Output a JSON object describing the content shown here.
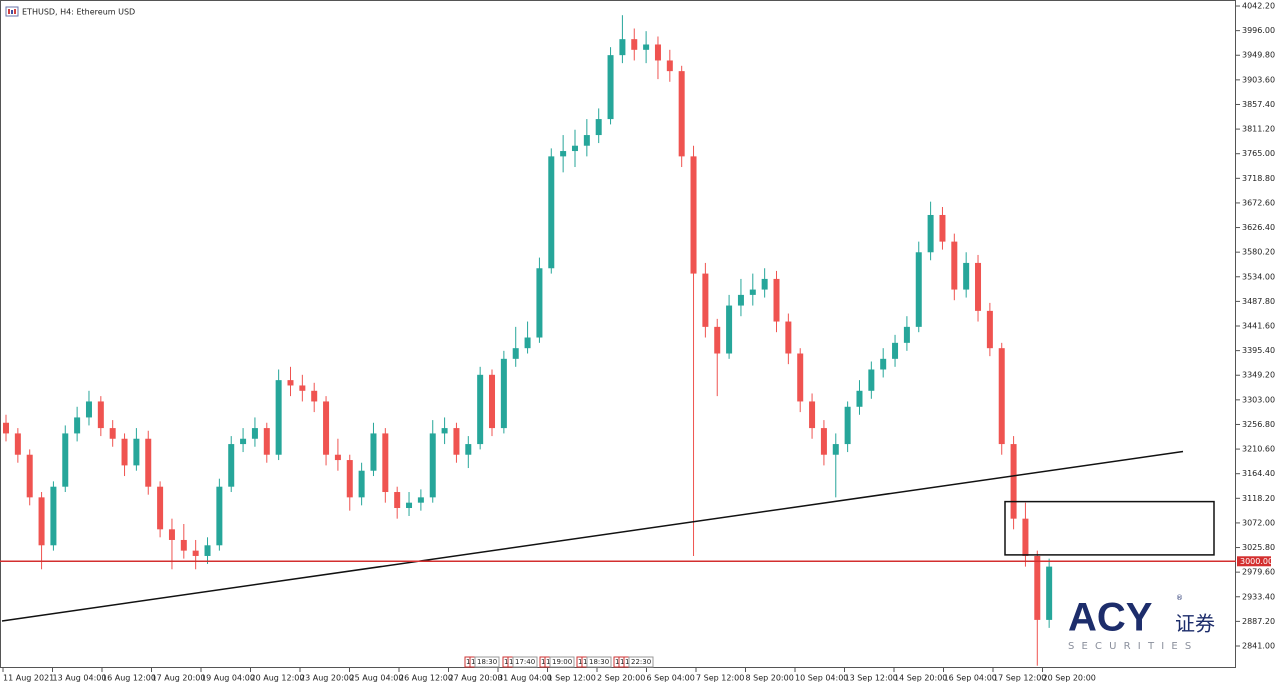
{
  "chart_data": {
    "type": "candlestick",
    "title": "ETHUSD, H4:  Ethereum USD",
    "up_color": "#26a69a",
    "down_color": "#ef5350",
    "x_labels": [
      "11 Aug 2021",
      "13 Aug 04:00",
      "16 Aug 12:00",
      "17 Aug 20:00",
      "19 Aug 04:00",
      "20 Aug 12:00",
      "23 Aug 20:00",
      "25 Aug 04:00",
      "26 Aug 12:00",
      "27 Aug 20:00",
      "31 Aug 04:00",
      "1 Sep 12:00",
      "2 Sep 20:00",
      "6 Sep 04:00",
      "7 Sep 12:00",
      "8 Sep 20:00",
      "10 Sep 04:00",
      "13 Sep 12:00",
      "14 Sep 20:00",
      "16 Sep 04:00",
      "17 Sep 12:00",
      "20 Sep 20:00"
    ],
    "ohlc": [
      [
        3260,
        3275,
        3225,
        3240
      ],
      [
        3240,
        3250,
        3185,
        3200
      ],
      [
        3200,
        3210,
        3105,
        3120
      ],
      [
        3120,
        3130,
        2985,
        3030
      ],
      [
        3030,
        3150,
        3020,
        3140
      ],
      [
        3140,
        3255,
        3130,
        3240
      ],
      [
        3240,
        3290,
        3225,
        3270
      ],
      [
        3270,
        3320,
        3255,
        3300
      ],
      [
        3300,
        3310,
        3235,
        3250
      ],
      [
        3250,
        3265,
        3215,
        3230
      ],
      [
        3230,
        3240,
        3160,
        3180
      ],
      [
        3180,
        3250,
        3170,
        3230
      ],
      [
        3230,
        3245,
        3125,
        3140
      ],
      [
        3140,
        3150,
        3045,
        3060
      ],
      [
        3060,
        3080,
        2985,
        3040
      ],
      [
        3040,
        3070,
        3005,
        3020
      ],
      [
        3020,
        3040,
        2985,
        3010
      ],
      [
        3010,
        3045,
        2995,
        3030
      ],
      [
        3030,
        3155,
        3020,
        3140
      ],
      [
        3140,
        3235,
        3130,
        3220
      ],
      [
        3220,
        3250,
        3205,
        3230
      ],
      [
        3230,
        3270,
        3215,
        3250
      ],
      [
        3250,
        3260,
        3185,
        3200
      ],
      [
        3200,
        3360,
        3190,
        3340
      ],
      [
        3340,
        3365,
        3310,
        3330
      ],
      [
        3330,
        3350,
        3300,
        3320
      ],
      [
        3320,
        3335,
        3280,
        3300
      ],
      [
        3300,
        3310,
        3180,
        3200
      ],
      [
        3200,
        3230,
        3170,
        3190
      ],
      [
        3190,
        3200,
        3095,
        3120
      ],
      [
        3120,
        3185,
        3105,
        3170
      ],
      [
        3170,
        3260,
        3160,
        3240
      ],
      [
        3240,
        3250,
        3110,
        3130
      ],
      [
        3130,
        3140,
        3080,
        3100
      ],
      [
        3100,
        3130,
        3085,
        3110
      ],
      [
        3110,
        3135,
        3095,
        3120
      ],
      [
        3120,
        3265,
        3110,
        3240
      ],
      [
        3240,
        3270,
        3220,
        3250
      ],
      [
        3250,
        3260,
        3185,
        3200
      ],
      [
        3200,
        3235,
        3175,
        3220
      ],
      [
        3220,
        3365,
        3210,
        3350
      ],
      [
        3350,
        3360,
        3235,
        3250
      ],
      [
        3250,
        3395,
        3240,
        3380
      ],
      [
        3380,
        3440,
        3365,
        3400
      ],
      [
        3400,
        3450,
        3390,
        3420
      ],
      [
        3420,
        3570,
        3410,
        3550
      ],
      [
        3550,
        3775,
        3540,
        3760
      ],
      [
        3760,
        3800,
        3730,
        3770
      ],
      [
        3770,
        3810,
        3740,
        3780
      ],
      [
        3780,
        3830,
        3760,
        3800
      ],
      [
        3800,
        3850,
        3785,
        3830
      ],
      [
        3830,
        3965,
        3820,
        3950
      ],
      [
        3950,
        4025,
        3935,
        3980
      ],
      [
        3980,
        4000,
        3940,
        3960
      ],
      [
        3960,
        3995,
        3935,
        3970
      ],
      [
        3970,
        3985,
        3905,
        3940
      ],
      [
        3940,
        3960,
        3900,
        3920
      ],
      [
        3920,
        3930,
        3740,
        3760
      ],
      [
        3760,
        3780,
        3010,
        3540
      ],
      [
        3540,
        3560,
        3420,
        3440
      ],
      [
        3440,
        3455,
        3310,
        3390
      ],
      [
        3390,
        3500,
        3380,
        3480
      ],
      [
        3480,
        3530,
        3460,
        3500
      ],
      [
        3500,
        3540,
        3480,
        3510
      ],
      [
        3510,
        3550,
        3495,
        3530
      ],
      [
        3530,
        3545,
        3430,
        3450
      ],
      [
        3450,
        3465,
        3370,
        3390
      ],
      [
        3390,
        3400,
        3280,
        3300
      ],
      [
        3300,
        3315,
        3230,
        3250
      ],
      [
        3250,
        3265,
        3180,
        3200
      ],
      [
        3200,
        3240,
        3120,
        3220
      ],
      [
        3220,
        3300,
        3205,
        3290
      ],
      [
        3290,
        3340,
        3275,
        3320
      ],
      [
        3320,
        3375,
        3305,
        3360
      ],
      [
        3360,
        3400,
        3345,
        3380
      ],
      [
        3380,
        3425,
        3365,
        3410
      ],
      [
        3410,
        3460,
        3395,
        3440
      ],
      [
        3440,
        3600,
        3430,
        3580
      ],
      [
        3580,
        3675,
        3565,
        3650
      ],
      [
        3650,
        3665,
        3585,
        3600
      ],
      [
        3600,
        3615,
        3490,
        3510
      ],
      [
        3510,
        3580,
        3495,
        3560
      ],
      [
        3560,
        3575,
        3450,
        3470
      ],
      [
        3470,
        3485,
        3385,
        3400
      ],
      [
        3400,
        3410,
        3200,
        3220
      ],
      [
        3220,
        3235,
        3060,
        3080
      ],
      [
        3080,
        3110,
        2990,
        3010
      ],
      [
        3010,
        3020,
        2804,
        2890
      ],
      [
        2890,
        3005,
        2875,
        2990
      ]
    ],
    "ylim": [
      2799.7,
      4053.5
    ],
    "yticks": [
      {
        "value": 4042.2,
        "label": "4042.20"
      },
      {
        "value": 3996,
        "label": "3996.00"
      },
      {
        "value": 3949.8,
        "label": "3949.80"
      },
      {
        "value": 3903.6,
        "label": "3903.60"
      },
      {
        "value": 3857.4,
        "label": "3857.40"
      },
      {
        "value": 3811.2,
        "label": "3811.20"
      },
      {
        "value": 3765,
        "label": "3765.00"
      },
      {
        "value": 3718.8,
        "label": "3718.80"
      },
      {
        "value": 3672.6,
        "label": "3672.60"
      },
      {
        "value": 3626.4,
        "label": "3626.40"
      },
      {
        "value": 3580.2,
        "label": "3580.20"
      },
      {
        "value": 3534,
        "label": "3534.00"
      },
      {
        "value": 3487.8,
        "label": "3487.80"
      },
      {
        "value": 3441.6,
        "label": "3441.60"
      },
      {
        "value": 3395.4,
        "label": "3395.40"
      },
      {
        "value": 3349.2,
        "label": "3349.20"
      },
      {
        "value": 3303,
        "label": "3303.00"
      },
      {
        "value": 3256.8,
        "label": "3256.80"
      },
      {
        "value": 3210.6,
        "label": "3210.60"
      },
      {
        "value": 3164.4,
        "label": "3164.40"
      },
      {
        "value": 3118.2,
        "label": "3118.20"
      },
      {
        "value": 3072,
        "label": "3072.00"
      },
      {
        "value": 3025.8,
        "label": "3025.80"
      },
      {
        "value": 2979.6,
        "label": "2979.60"
      },
      {
        "value": 2933.4,
        "label": "2933.40"
      },
      {
        "value": 2887.2,
        "label": "2887.20"
      },
      {
        "value": 2841,
        "label": "2841.00"
      }
    ],
    "horizontal_line": {
      "value": 3000,
      "label": "3000.00",
      "color": "#d32f2f"
    },
    "trendline": {
      "start": 2888,
      "end": 3206
    },
    "box": {
      "top": 3112,
      "bottom": 3012
    },
    "session_markers": [
      {
        "flags": [
          "1",
          "1"
        ],
        "time": "18:30"
      },
      {
        "flags": [
          "1",
          "1"
        ],
        "time": "17:40"
      },
      {
        "flags": [
          "1",
          "1"
        ],
        "time": "19:00"
      },
      {
        "flags": [
          "1",
          "1"
        ],
        "time": "18:30"
      },
      {
        "flags": [
          "1",
          "1",
          "1"
        ],
        "time": "22:30"
      }
    ],
    "watermark": {
      "brand": "ACY",
      "registered": "®",
      "chinese": "证券",
      "sub": "S E C U R I T I E S"
    }
  }
}
